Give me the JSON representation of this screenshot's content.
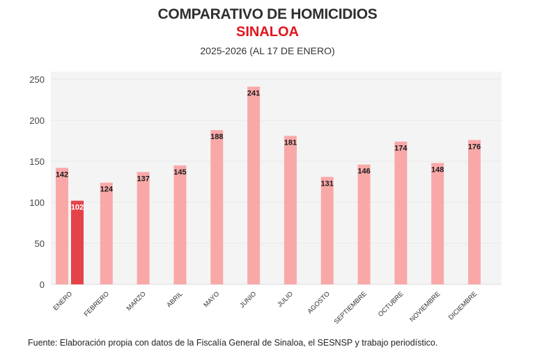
{
  "header": {
    "title": "COMPARATIVO DE HOMICIDIOS",
    "subtitle": "SINALOA",
    "period": "2025-2026 (AL 17 DE ENERO)"
  },
  "footer": {
    "source": "Fuente: Elaboración propia con datos de la Fiscalía General de Sinaloa, el SESNSP y trabajo periodístico."
  },
  "chart_data": {
    "type": "bar",
    "title": "COMPARATIVO DE HOMICIDIOS",
    "subtitle": "SINALOA",
    "xlabel": "",
    "ylabel": "",
    "ylim": [
      0,
      250
    ],
    "yticks": [
      0,
      50,
      100,
      150,
      200,
      250
    ],
    "grid": true,
    "legend": "none",
    "categories": [
      "ENERO",
      "FEBRERO",
      "MARZO",
      "ABRIL",
      "MAYO",
      "JUNIO",
      "JULIO",
      "AGOSTO",
      "SEPTIEMBRE",
      "OCTUBRE",
      "NOVIEMBRE",
      "DICIEMBRE"
    ],
    "series": [
      {
        "name": "2025",
        "color": "#f9a8a8",
        "label_color": "#1a1a1a",
        "values": [
          142,
          124,
          137,
          145,
          188,
          241,
          181,
          131,
          146,
          174,
          148,
          176
        ]
      },
      {
        "name": "2026",
        "color": "#e5434a",
        "label_color": "#ffffff",
        "values": [
          102,
          null,
          null,
          null,
          null,
          null,
          null,
          null,
          null,
          null,
          null,
          null
        ]
      }
    ],
    "colors": {
      "background": "#f4f4f4",
      "grid": "#e8e8e8",
      "axis_text": "#444444"
    }
  }
}
